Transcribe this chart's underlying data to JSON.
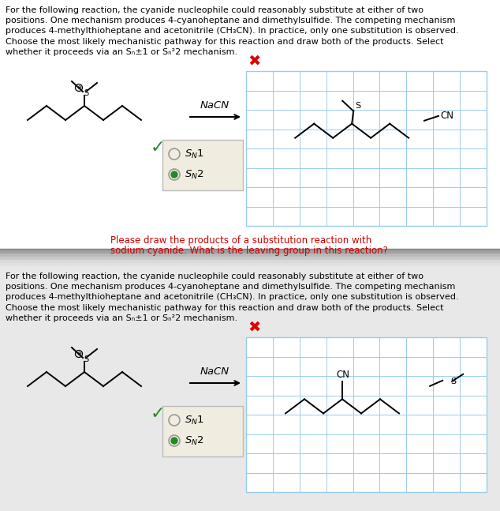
{
  "bg_top": "#ffffff",
  "bg_divider": "#a0a0a0",
  "bg_bottom": "#e0e0e0",
  "text_color": "#000000",
  "red_color": "#cc0000",
  "green_color": "#228B22",
  "grid_color": "#99ccee",
  "paragraph": "For the following reaction, the cyanide nucleophile could reasonably substitute at either of two\npositions. One mechanism produces 4-cyanoheptane and dimethylsulfide. The competing mechanism\nproduces 4-methylthioheptane and acetonitrile (CH₃CN). In practice, only one substitution is observed.\nChoose the most likely mechanistic pathway for this reaction and draw both of the products. Select\nwhether it proceeds via an Sₙ±1 or Sₙ²2 mechanism.",
  "nacn_label": "NaCN",
  "red_text_1": "Please draw the products of a substitution reaction with",
  "red_text_2": "sodium cyanide. What is the leaving group in this reaction?",
  "fig_width": 6.34,
  "fig_height": 6.47,
  "para_fontsize": 8.0,
  "grid_nx": 9,
  "grid_ny": 8
}
